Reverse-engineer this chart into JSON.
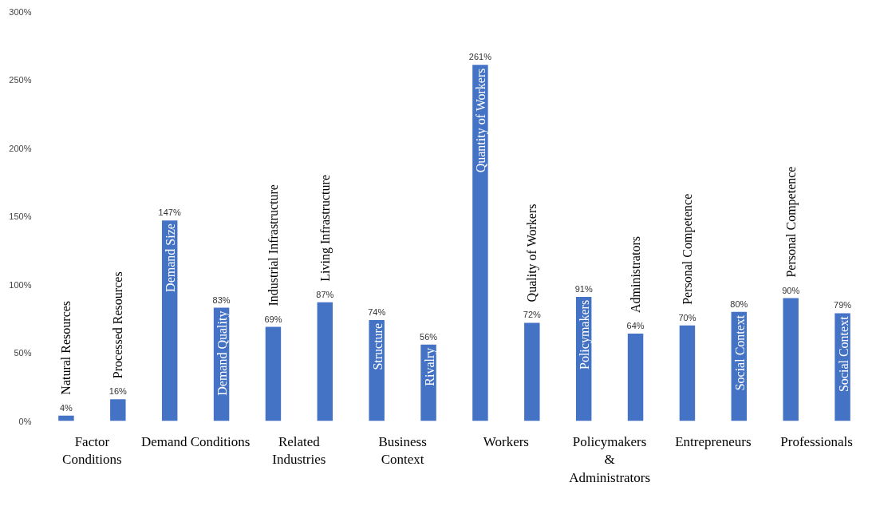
{
  "chart_data": {
    "type": "bar",
    "categories": [
      "Natural Resources",
      "Processed Resources",
      "Demand Size",
      "Demand Quality",
      "Industrial Infrastructure",
      "Living Infrastructure",
      "Structure",
      "Rivalry",
      "Quantity of Workers",
      "Quality of Workers",
      "Policymakers",
      "Administrators",
      "Personal Competence",
      "Social Context",
      "Personal Competence",
      "Social Context"
    ],
    "values": [
      4,
      16,
      147,
      83,
      69,
      87,
      74,
      56,
      261,
      72,
      91,
      64,
      70,
      80,
      90,
      79
    ],
    "value_labels": [
      "4%",
      "16%",
      "147%",
      "83%",
      "69%",
      "87%",
      "74%",
      "56%",
      "261%",
      "72%",
      "91%",
      "64%",
      "70%",
      "80%",
      "90%",
      "79%"
    ],
    "color": "#4472c4",
    "ylim": [
      0,
      300
    ],
    "yticks": [
      {
        "value": 0,
        "label": "0%"
      },
      {
        "value": 50,
        "label": "50%"
      },
      {
        "value": 100,
        "label": "100%"
      },
      {
        "value": 150,
        "label": "150%"
      },
      {
        "value": 200,
        "label": "200%"
      },
      {
        "value": 250,
        "label": "250%"
      },
      {
        "value": 300,
        "label": "300%"
      }
    ],
    "annotations": [
      "Factor\nConditions",
      "Demand Conditions",
      "Related\nIndustries",
      "Business\nContext",
      "Workers",
      "Policymakers\n&\nAdministrators",
      "Entrepreneurs",
      "Professionals"
    ],
    "grid": false
  }
}
